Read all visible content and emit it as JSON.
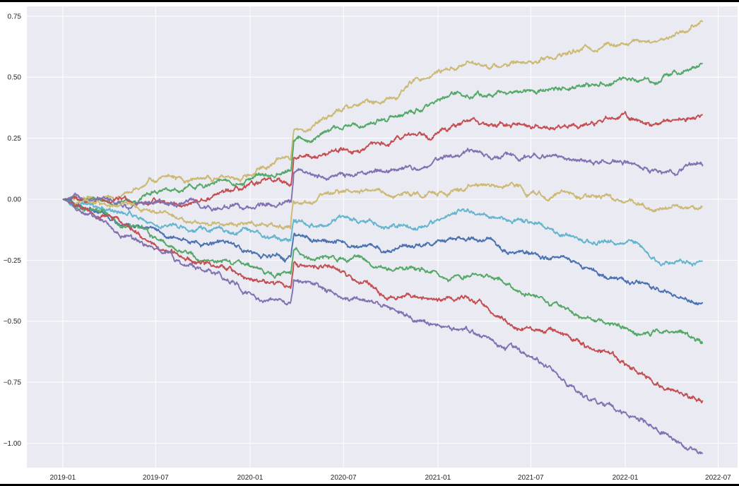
{
  "chart_data": {
    "type": "line",
    "title": "",
    "xlabel": "",
    "ylabel": "",
    "style": {
      "background": "#EAEAF2",
      "grid": true,
      "grid_color": "#ffffff",
      "legend": "none"
    },
    "xlim": [
      "2018-10-23",
      "2022-08-08"
    ],
    "ylim": [
      -1.1,
      0.79
    ],
    "x_ticks": [
      {
        "value": "2019-01-01",
        "label": "2019-01"
      },
      {
        "value": "2019-07-01",
        "label": "2019-07"
      },
      {
        "value": "2020-01-01",
        "label": "2020-01"
      },
      {
        "value": "2020-07-01",
        "label": "2020-07"
      },
      {
        "value": "2021-01-01",
        "label": "2021-01"
      },
      {
        "value": "2021-07-01",
        "label": "2021-07"
      },
      {
        "value": "2022-01-01",
        "label": "2022-01"
      },
      {
        "value": "2022-07-01",
        "label": "2022-07"
      }
    ],
    "y_ticks": [
      {
        "value": 0.75,
        "label": "0.75"
      },
      {
        "value": 0.5,
        "label": "0.50"
      },
      {
        "value": 0.25,
        "label": "0.25"
      },
      {
        "value": 0.0,
        "label": "0.00"
      },
      {
        "value": -0.25,
        "label": "−0.25"
      },
      {
        "value": -0.5,
        "label": "−0.50"
      },
      {
        "value": -0.75,
        "label": "−0.75"
      },
      {
        "value": -1.0,
        "label": "−1.00"
      }
    ],
    "x": [
      "2019-01-01",
      "2019-04-01",
      "2019-07-01",
      "2019-10-01",
      "2020-01-01",
      "2020-03-20",
      "2020-03-26",
      "2020-05-01",
      "2020-07-01",
      "2020-10-01",
      "2021-01-01",
      "2021-03-01",
      "2021-05-01",
      "2021-07-01",
      "2021-09-01",
      "2021-11-01",
      "2022-01-01",
      "2022-03-01",
      "2022-05-01",
      "2022-06-01"
    ],
    "series": [
      {
        "color": "#CCB974",
        "values": [
          0.0,
          0.01,
          0.06,
          0.08,
          0.12,
          0.16,
          0.28,
          0.31,
          0.36,
          0.41,
          0.52,
          0.56,
          0.55,
          0.58,
          0.61,
          0.63,
          0.67,
          0.68,
          0.72,
          0.74
        ]
      },
      {
        "color": "#55A868",
        "values": [
          0.0,
          -0.01,
          0.03,
          0.04,
          0.07,
          0.1,
          0.23,
          0.25,
          0.28,
          0.32,
          0.41,
          0.43,
          0.42,
          0.44,
          0.46,
          0.47,
          0.5,
          0.49,
          0.53,
          0.545
        ]
      },
      {
        "color": "#C44E52",
        "values": [
          0.0,
          -0.02,
          0.0,
          0.0,
          0.02,
          0.04,
          0.16,
          0.17,
          0.2,
          0.22,
          0.29,
          0.31,
          0.3,
          0.3,
          0.31,
          0.31,
          0.33,
          0.31,
          0.34,
          0.35
        ]
      },
      {
        "color": "#8172B2",
        "values": [
          0.0,
          -0.03,
          -0.03,
          -0.04,
          -0.03,
          -0.03,
          0.09,
          0.09,
          0.1,
          0.12,
          0.16,
          0.19,
          0.17,
          0.16,
          0.17,
          0.15,
          0.16,
          0.13,
          0.15,
          0.155
        ]
      },
      {
        "color": "#CCB974",
        "values": [
          0.0,
          -0.04,
          -0.07,
          -0.09,
          -0.09,
          -0.1,
          0.01,
          0.0,
          0.02,
          0.01,
          0.04,
          0.07,
          0.04,
          0.03,
          0.02,
          0.0,
          -0.01,
          -0.05,
          -0.03,
          -0.04
        ]
      },
      {
        "color": "#64B5CD",
        "values": [
          0.0,
          -0.05,
          -0.1,
          -0.14,
          -0.15,
          -0.17,
          -0.08,
          -0.09,
          -0.08,
          -0.1,
          -0.07,
          -0.05,
          -0.09,
          -0.11,
          -0.13,
          -0.16,
          -0.18,
          -0.22,
          -0.22,
          -0.23
        ]
      },
      {
        "color": "#4C72B0",
        "values": [
          0.0,
          -0.06,
          -0.13,
          -0.19,
          -0.21,
          -0.24,
          -0.15,
          -0.17,
          -0.16,
          -0.2,
          -0.18,
          -0.18,
          -0.21,
          -0.25,
          -0.28,
          -0.32,
          -0.35,
          -0.39,
          -0.4,
          -0.42
        ]
      },
      {
        "color": "#55A868",
        "values": [
          0.0,
          -0.07,
          -0.17,
          -0.23,
          -0.27,
          -0.31,
          -0.21,
          -0.23,
          -0.23,
          -0.29,
          -0.3,
          -0.29,
          -0.34,
          -0.38,
          -0.42,
          -0.48,
          -0.51,
          -0.56,
          -0.58,
          -0.61
        ]
      },
      {
        "color": "#C44E52",
        "values": [
          0.0,
          -0.08,
          -0.2,
          -0.28,
          -0.33,
          -0.37,
          -0.27,
          -0.29,
          -0.3,
          -0.38,
          -0.41,
          -0.4,
          -0.46,
          -0.52,
          -0.57,
          -0.63,
          -0.68,
          -0.74,
          -0.78,
          -0.81
        ]
      },
      {
        "color": "#8172B2",
        "values": [
          0.0,
          -0.09,
          -0.23,
          -0.31,
          -0.38,
          -0.43,
          -0.34,
          -0.36,
          -0.41,
          -0.48,
          -0.52,
          -0.54,
          -0.6,
          -0.66,
          -0.73,
          -0.8,
          -0.87,
          -0.93,
          -0.98,
          -1.0
        ]
      }
    ]
  }
}
